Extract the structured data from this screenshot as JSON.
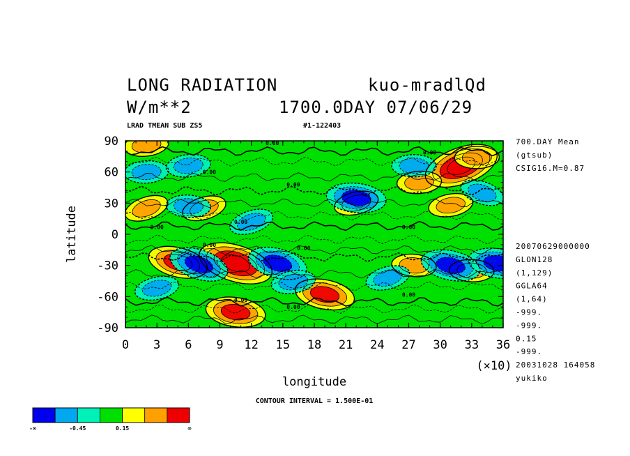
{
  "header": {
    "title": "LONG RADIATION",
    "run": "kuo-mradlQd",
    "units": "W/m**2",
    "time": "1700.0DAY 07/06/29",
    "variable": "LRAD TMEAN SUB ZS5",
    "id": "#1-122403"
  },
  "right_info": {
    "top": [
      "700.DAY Mean",
      "(gtsub)",
      "CSIG16.M=0.87"
    ],
    "mid": [
      "20070629000000",
      "GLON128",
      "(1,129)",
      "GGLA64",
      "(1,64)",
      "-999.",
      "-999.",
      "0.15",
      "-999.",
      "20031028 164058",
      "yukiko"
    ]
  },
  "footer": {
    "contour_interval": "CONTOUR INTERVAL = 1.500E-01"
  },
  "colorbar": {
    "colors": [
      "#0000ee",
      "#00a8f0",
      "#00f0b8",
      "#00e000",
      "#ffff00",
      "#ffa000",
      "#ee0000"
    ],
    "labels": [
      "-∞",
      "-0.45",
      "0.15",
      "∞"
    ]
  },
  "contour_labels": [
    "0.00",
    "0.00",
    "0.00",
    "0.00",
    "0.00",
    "0.00",
    "0.00",
    "0.00",
    "0.00",
    "0.00",
    "0.00",
    "0.00"
  ],
  "chart_data": {
    "type": "heatmap",
    "title": "LONG RADIATION",
    "xlabel": "longitude",
    "ylabel": "latitude",
    "x_multiplier": "(×10)",
    "xlim": [
      0,
      36
    ],
    "ylim": [
      -90,
      90
    ],
    "x_ticks": [
      "0",
      "3",
      "6",
      "9",
      "12",
      "15",
      "18",
      "21",
      "24",
      "27",
      "30",
      "33",
      "36"
    ],
    "y_ticks": [
      "-90",
      "-60",
      "-30",
      "0",
      "30",
      "60",
      "90"
    ],
    "contour_interval": 0.15,
    "levels": [
      -0.45,
      0.15
    ],
    "features": [
      {
        "lon": 32,
        "lat": 66,
        "value": 0.6
      },
      {
        "lon": 10.5,
        "lat": -28,
        "value": 0.55
      },
      {
        "lon": 5,
        "lat": -27,
        "value": 0.5
      },
      {
        "lon": 19,
        "lat": -58,
        "value": 0.5
      },
      {
        "lon": 10.5,
        "lat": -75,
        "value": 0.4
      },
      {
        "lon": 27.5,
        "lat": -30,
        "value": 0.35
      },
      {
        "lon": 33,
        "lat": -35,
        "value": 0.35
      },
      {
        "lon": 33.5,
        "lat": 74,
        "value": 0.3
      },
      {
        "lon": 28,
        "lat": 50,
        "value": 0.25
      },
      {
        "lon": 2,
        "lat": 86,
        "value": 0.3
      },
      {
        "lon": 31,
        "lat": 28,
        "value": 0.3
      },
      {
        "lon": 22,
        "lat": 30,
        "value": 0.3
      },
      {
        "lon": 7.5,
        "lat": 25,
        "value": 0.25
      },
      {
        "lon": 2,
        "lat": 25,
        "value": 0.25
      },
      {
        "lon": 7,
        "lat": -29,
        "value": -0.45
      },
      {
        "lon": 14.5,
        "lat": -28,
        "value": -0.4
      },
      {
        "lon": 31,
        "lat": -30,
        "value": -0.4
      },
      {
        "lon": 35.5,
        "lat": -28,
        "value": -0.45
      },
      {
        "lon": 22,
        "lat": 35,
        "value": -0.4
      },
      {
        "lon": 6,
        "lat": 27,
        "value": -0.35
      },
      {
        "lon": 27.5,
        "lat": 66,
        "value": -0.3
      },
      {
        "lon": 2,
        "lat": 60,
        "value": -0.3
      },
      {
        "lon": 6,
        "lat": 66,
        "value": -0.3
      },
      {
        "lon": 16,
        "lat": -46,
        "value": -0.3
      },
      {
        "lon": 3,
        "lat": -52,
        "value": -0.3
      },
      {
        "lon": 25,
        "lat": -42,
        "value": -0.25
      },
      {
        "lon": 12,
        "lat": 12,
        "value": -0.25
      },
      {
        "lon": 34,
        "lat": 40,
        "value": -0.25
      }
    ]
  }
}
